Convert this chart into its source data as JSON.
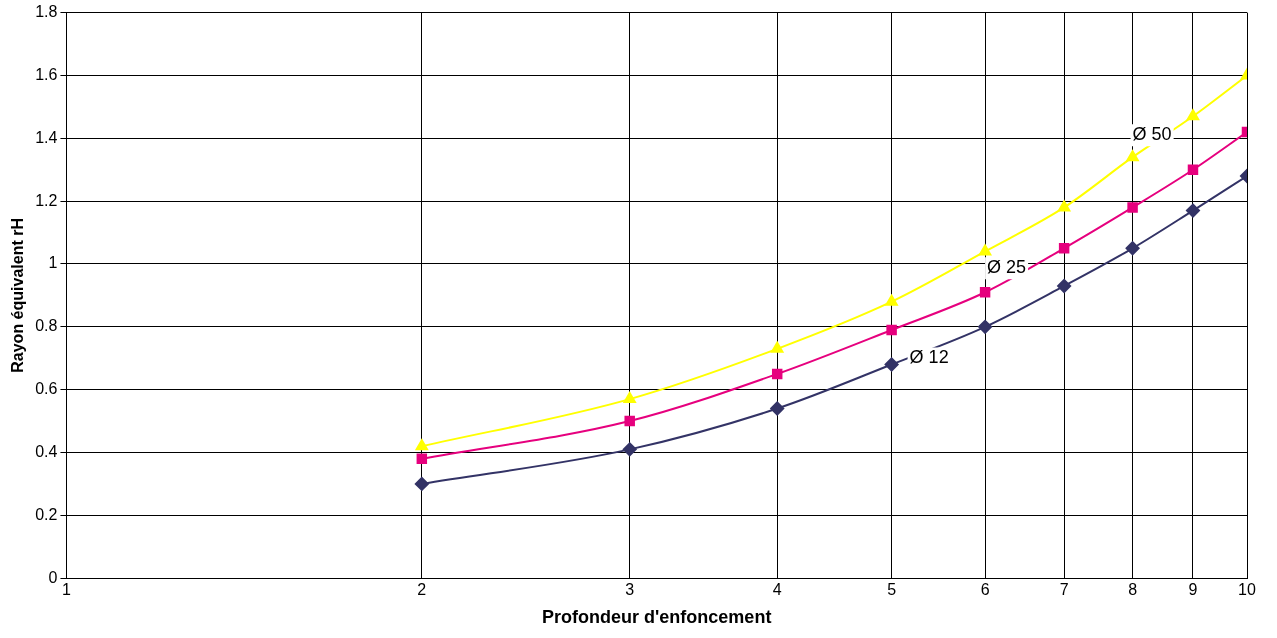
{
  "chart_data": {
    "type": "line",
    "xlabel": "Profondeur d'enfoncement",
    "ylabel": "Rayon équivalent rH",
    "log": "x",
    "x": [
      2,
      3,
      4,
      5,
      6,
      7,
      8,
      9,
      10
    ],
    "xlim": [
      1,
      10
    ],
    "xticks": [
      1,
      2,
      3,
      4,
      5,
      6,
      7,
      8,
      9,
      10
    ],
    "ylim": [
      0,
      1.8
    ],
    "yticks": [
      0,
      0.2,
      0.4,
      0.6,
      0.8,
      1,
      1.2,
      1.4,
      1.6,
      1.8
    ],
    "grid": true,
    "legend": false,
    "series": [
      {
        "name": "Ø 12",
        "color": "#333366",
        "marker": "diamond",
        "values": [
          0.3,
          0.41,
          0.54,
          0.68,
          0.8,
          0.93,
          1.05,
          1.17,
          1.28
        ]
      },
      {
        "name": "Ø 25",
        "color": "#e6007e",
        "marker": "square",
        "values": [
          0.38,
          0.5,
          0.65,
          0.79,
          0.91,
          1.05,
          1.18,
          1.3,
          1.42
        ]
      },
      {
        "name": "Ø 50",
        "color": "#ffff00",
        "marker": "triangle",
        "values": [
          0.42,
          0.57,
          0.73,
          0.88,
          1.04,
          1.18,
          1.34,
          1.47,
          1.6
        ]
      }
    ]
  }
}
